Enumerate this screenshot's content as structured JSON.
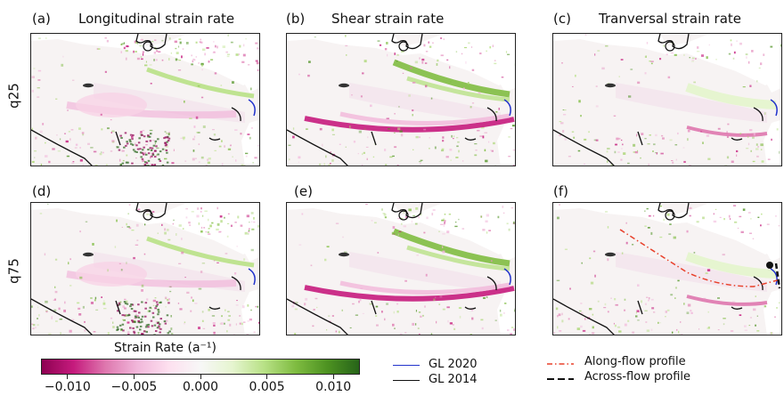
{
  "chart_data": {
    "type": "heatmap",
    "rows": [
      "q25",
      "q75"
    ],
    "columns": [
      "Longitudinal strain rate",
      "Shear strain rate",
      "Tranversal strain rate"
    ],
    "panels": [
      {
        "label": "(a)",
        "title": "Longitudinal strain rate",
        "row": "q25"
      },
      {
        "label": "(b)",
        "title": "Shear strain rate",
        "row": "q25"
      },
      {
        "label": "(c)",
        "title": "Tranversal strain rate",
        "row": "q25"
      },
      {
        "label": "(d)",
        "title": "",
        "row": "q75"
      },
      {
        "label": "(e)",
        "title": "",
        "row": "q75"
      },
      {
        "label": "(f)",
        "title": "",
        "row": "q75"
      }
    ],
    "colorbar": {
      "title": "Strain Rate (a⁻¹)",
      "range": [
        -0.012,
        0.012
      ],
      "ticks": [
        -0.01,
        -0.005,
        0.0,
        0.005,
        0.01
      ],
      "tick_labels": [
        "−0.010",
        "−0.005",
        "0.000",
        "0.005",
        "0.010"
      ],
      "colors": [
        "#8e0152",
        "#c51b7d",
        "#de77ae",
        "#f1b6da",
        "#fde0ef",
        "#f7f7f7",
        "#e6f5d0",
        "#b8e186",
        "#7fbc41",
        "#4d9221",
        "#276419"
      ]
    },
    "legend": [
      {
        "label": "GL 2020",
        "color": "#2233cc",
        "style": "solid"
      },
      {
        "label": "GL 2014",
        "color": "#111111",
        "style": "solid"
      },
      {
        "label": "Along-flow profile",
        "color": "#e8402a",
        "style": "dash-dot"
      },
      {
        "label": "Across-flow profile",
        "color": "#111111",
        "style": "dashed"
      }
    ]
  }
}
